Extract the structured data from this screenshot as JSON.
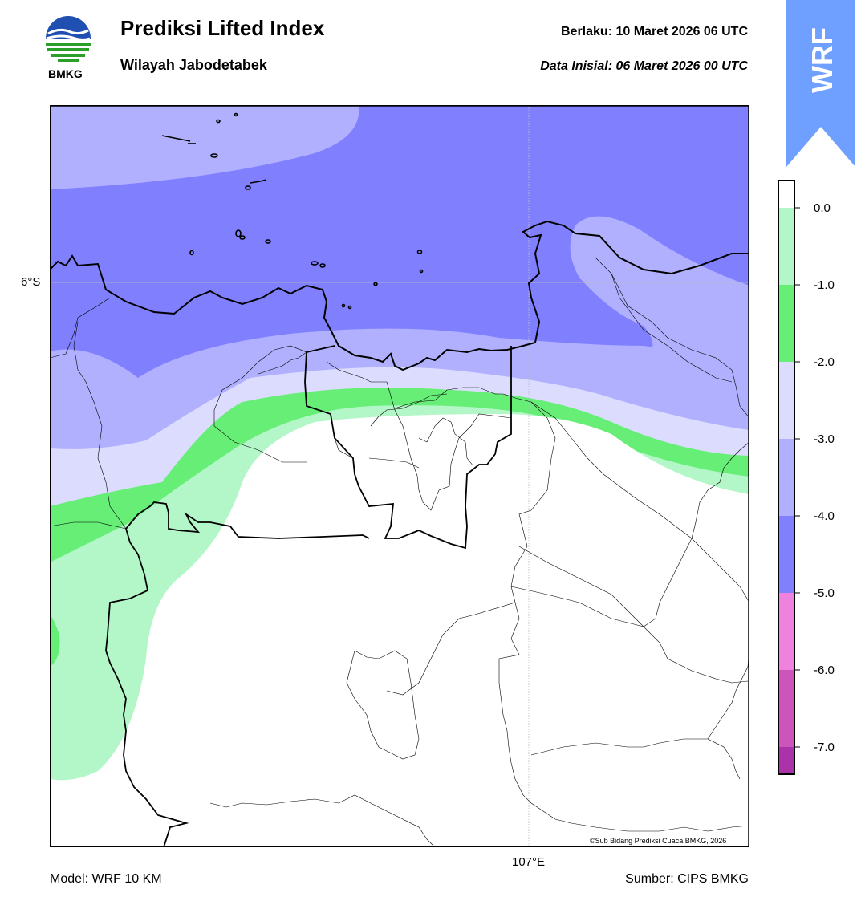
{
  "header": {
    "title": "Prediksi Lifted Index",
    "subtitle": "Wilayah Jabodetabek",
    "valid_label": "Berlaku:  10 Maret 2026 06 UTC",
    "init_label": "Data Inisial:  06 Maret 2026 00 UTC"
  },
  "logo": {
    "text": "BMKG"
  },
  "badge": {
    "text": "WRF",
    "color": "#6fa0ff"
  },
  "map": {
    "lat_label": "6°S",
    "lon_label": "107°E",
    "credit": "©Sub Bidang Prediksi Cuaca BMKG, 2026"
  },
  "colorbar": {
    "labels": [
      "0.0",
      "-1.0",
      "-2.0",
      "-3.0",
      "-4.0",
      "-5.0",
      "-6.0",
      "-7.0"
    ],
    "colors": [
      "#ffffff",
      "#b3f7c9",
      "#66ee77",
      "#dcdcff",
      "#b0b0ff",
      "#8080ff",
      "#ee82dd",
      "#cc55bb",
      "#aa33aa",
      "#882288"
    ]
  },
  "footer": {
    "model": "Model: WRF 10 KM",
    "source": "Sumber: CIPS BMKG"
  }
}
